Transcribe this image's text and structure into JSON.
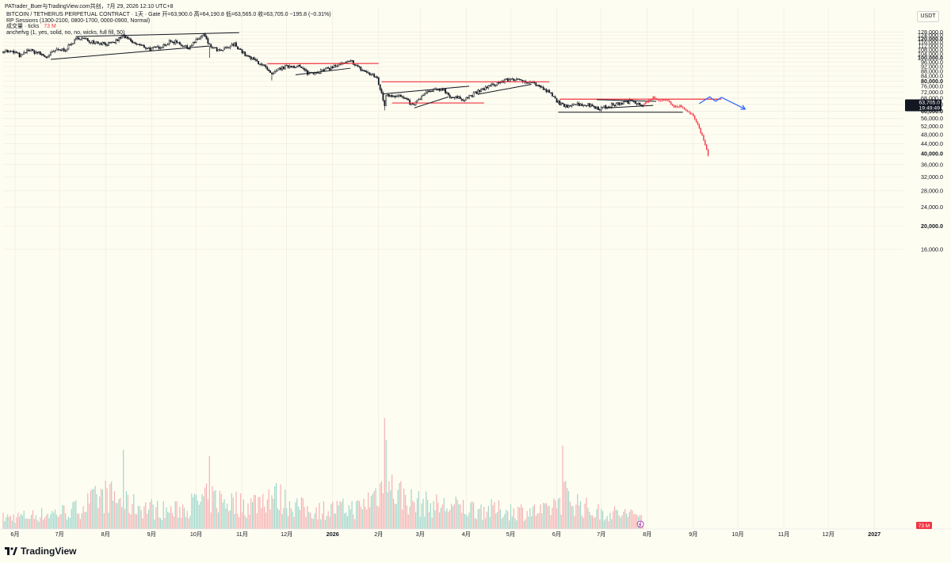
{
  "attribution": "PATrader_Buer与TradingView.com共创，7月 29, 2026 12:10 UTC+8",
  "legend": {
    "symbol_line": "BITCOIN / TETHERUS PERPETUAL CONTRACT · 1天 · Gate",
    "ohlc": "开=63,900.0  高=64,190.8  低=63,565.0  收=63,705.0  −195.8 (−0.31%)",
    "indicator_sessions": "RP Sessions (1300-2100, 0800-1700, 0000-0900, Normal)",
    "indicator_volume_label": "成交量 · ticks",
    "indicator_volume_value": "73 M",
    "indicator_anchor": "anchefvg (1, yes, solid, no, no, wicks, full fill, 50)"
  },
  "currency": "USDT",
  "logo_text": "TradingView",
  "colors": {
    "background": "#fefdf1",
    "candle": "#131722",
    "red": "#f23645",
    "volume_up": "#9fd6cc",
    "volume_down": "#f5b1b4",
    "projection": "#2962ff",
    "grid": "#eeeadb"
  },
  "chart_data": {
    "type": "candlestick",
    "timeframe": "1D",
    "y_axis": {
      "ticks": [
        "128,000.0",
        "124,000.0",
        "120,000.0",
        "116,000.0",
        "112,000.0",
        "108,000.0",
        "104,000.0",
        "100,000.0",
        "96,000.0",
        "92,000.0",
        "88,000.0",
        "84,000.0",
        "80,000.0",
        "76,000.0",
        "72,000.0",
        "68,000.0",
        "64,000.0",
        "60,000.0",
        "56,000.0",
        "52,000.0",
        "48,000.0",
        "44,000.0",
        "40,000.0",
        "36,000.0",
        "32,000.0",
        "28,000.0",
        "24,000.0",
        "20,000.0",
        "16,000.0"
      ],
      "tick_values": [
        128000,
        124000,
        120000,
        116000,
        112000,
        108000,
        104000,
        100000,
        96000,
        92000,
        88000,
        84000,
        80000,
        76000,
        72000,
        68000,
        64000,
        60000,
        56000,
        52000,
        48000,
        44000,
        40000,
        36000,
        32000,
        28000,
        24000,
        20000,
        16000
      ],
      "bold_ticks": [
        120000,
        100000,
        80000,
        60000,
        40000,
        20000
      ],
      "scale": "log",
      "range": [
        14500,
        131000
      ]
    },
    "x_axis": {
      "ticks": [
        "6月",
        "7月",
        "8月",
        "9月",
        "10月",
        "11月",
        "12月",
        "2026",
        "2月",
        "3月",
        "4月",
        "5月",
        "6月",
        "7月",
        "8月",
        "9月",
        "10月",
        "11月",
        "12月",
        "2027"
      ],
      "tick_dates": [
        "2025-06-01",
        "2025-07-01",
        "2025-08-01",
        "2025-09-01",
        "2025-10-01",
        "2025-11-01",
        "2025-12-01",
        "2026-01-01",
        "2026-02-01",
        "2026-03-01",
        "2026-04-01",
        "2026-05-01",
        "2026-06-01",
        "2026-07-01",
        "2026-08-01",
        "2026-09-01",
        "2026-10-01",
        "2026-11-01",
        "2026-12-01",
        "2027-01-01"
      ],
      "bold_ticks": [
        "2026",
        "2027"
      ]
    },
    "start_date": "2025-05-24",
    "last_real_date": "2026-07-29",
    "price_path": [
      [
        "2025-05-24",
        107000
      ],
      [
        "2025-06-01",
        105000
      ],
      [
        "2025-06-05",
        101500
      ],
      [
        "2025-06-10",
        108000
      ],
      [
        "2025-06-17",
        104500
      ],
      [
        "2025-06-22",
        100500
      ],
      [
        "2025-06-28",
        107000
      ],
      [
        "2025-07-05",
        108500
      ],
      [
        "2025-07-11",
        117500
      ],
      [
        "2025-07-14",
        121500
      ],
      [
        "2025-07-20",
        118000
      ],
      [
        "2025-08-01",
        114500
      ],
      [
        "2025-08-05",
        114000
      ],
      [
        "2025-08-13",
        123500
      ],
      [
        "2025-08-19",
        115500
      ],
      [
        "2025-09-01",
        108500
      ],
      [
        "2025-09-06",
        111000
      ],
      [
        "2025-09-13",
        116000
      ],
      [
        "2025-09-18",
        117000
      ],
      [
        "2025-09-25",
        109500
      ],
      [
        "2025-10-06",
        125000
      ],
      [
        "2025-10-10",
        112000
      ],
      [
        "2025-10-11",
        111500
      ],
      [
        "2025-10-17",
        106000
      ],
      [
        "2025-10-27",
        114000
      ],
      [
        "2025-11-04",
        101500
      ],
      [
        "2025-11-14",
        94500
      ],
      [
        "2025-11-21",
        84500
      ],
      [
        "2025-11-26",
        90000
      ],
      [
        "2025-12-03",
        92500
      ],
      [
        "2025-12-09",
        92500
      ],
      [
        "2025-12-15",
        86500
      ],
      [
        "2025-12-26",
        88500
      ],
      [
        "2026-01-05",
        93500
      ],
      [
        "2026-01-14",
        96500
      ],
      [
        "2026-01-20",
        89500
      ],
      [
        "2026-01-31",
        82500
      ],
      [
        "2026-02-05",
        63500
      ],
      [
        "2026-02-06",
        70500
      ],
      [
        "2026-02-16",
        69000
      ],
      [
        "2026-02-24",
        63500
      ],
      [
        "2026-03-05",
        71500
      ],
      [
        "2026-03-16",
        74500
      ],
      [
        "2026-03-22",
        68500
      ],
      [
        "2026-03-31",
        67500
      ],
      [
        "2026-04-14",
        75000
      ],
      [
        "2026-04-22",
        78500
      ],
      [
        "2026-05-02",
        82000
      ],
      [
        "2026-05-06",
        80500
      ],
      [
        "2026-05-15",
        79500
      ],
      [
        "2026-05-27",
        71500
      ],
      [
        "2026-06-02",
        65500
      ],
      [
        "2026-06-06",
        62500
      ],
      [
        "2026-06-12",
        64500
      ],
      [
        "2026-06-24",
        63500
      ],
      [
        "2026-06-30",
        61500
      ],
      [
        "2026-07-08",
        63500
      ],
      [
        "2026-07-18",
        65500
      ],
      [
        "2026-07-22",
        66500
      ],
      [
        "2026-07-29",
        63705
      ]
    ],
    "projection_red": [
      [
        "2026-07-30",
        64500
      ],
      [
        "2026-08-05",
        68500
      ],
      [
        "2026-08-10",
        66500
      ],
      [
        "2026-08-14",
        67000
      ],
      [
        "2026-08-19",
        62500
      ],
      [
        "2026-08-23",
        63000
      ],
      [
        "2026-08-27",
        60500
      ],
      [
        "2026-08-31",
        58500
      ],
      [
        "2026-09-03",
        54500
      ],
      [
        "2026-09-06",
        49000
      ],
      [
        "2026-09-08",
        45500
      ],
      [
        "2026-09-11",
        39500
      ]
    ],
    "projection_blue": [
      [
        "2026-09-05",
        64500
      ],
      [
        "2026-09-12",
        68800
      ],
      [
        "2026-09-16",
        66000
      ],
      [
        "2026-09-20",
        68500
      ],
      [
        "2026-10-06",
        61200
      ]
    ],
    "volume_axis_max": 150,
    "volume_envelope": [
      [
        "2025-05-24",
        18
      ],
      [
        "2025-06-15",
        22
      ],
      [
        "2025-07-10",
        30
      ],
      [
        "2025-08-02",
        55
      ],
      [
        "2025-08-15",
        40
      ],
      [
        "2025-09-15",
        28
      ],
      [
        "2025-10-10",
        50
      ],
      [
        "2025-11-05",
        38
      ],
      [
        "2025-11-20",
        56
      ],
      [
        "2025-12-15",
        30
      ],
      [
        "2026-01-20",
        34
      ],
      [
        "2026-02-05",
        72
      ],
      [
        "2026-02-25",
        42
      ],
      [
        "2026-03-20",
        36
      ],
      [
        "2026-04-25",
        30
      ],
      [
        "2026-05-25",
        28
      ],
      [
        "2026-06-06",
        55
      ],
      [
        "2026-06-25",
        28
      ],
      [
        "2026-07-29",
        22
      ]
    ],
    "volume_spikes": [
      [
        "2025-08-13",
        100
      ],
      [
        "2025-10-10",
        92
      ],
      [
        "2026-02-05",
        140
      ],
      [
        "2026-02-06",
        112
      ],
      [
        "2026-06-05",
        105
      ]
    ],
    "trendlines": [
      {
        "color": "black",
        "points": [
          [
            "2025-07-12",
            122600
          ],
          [
            "2025-10-30",
            127200
          ]
        ]
      },
      {
        "color": "black",
        "points": [
          [
            "2025-06-25",
            98500
          ],
          [
            "2025-10-10",
            112000
          ]
        ]
      },
      {
        "color": "red",
        "points": [
          [
            "2025-11-18",
            94500
          ],
          [
            "2026-02-01",
            94700
          ]
        ]
      },
      {
        "color": "black",
        "points": [
          [
            "2025-12-07",
            85000
          ],
          [
            "2026-01-13",
            90500
          ]
        ]
      },
      {
        "color": "red",
        "points": [
          [
            "2026-02-03",
            79500
          ],
          [
            "2026-05-27",
            79500
          ]
        ]
      },
      {
        "color": "black",
        "points": [
          [
            "2026-02-04",
            70800
          ],
          [
            "2026-04-03",
            76200
          ]
        ]
      },
      {
        "color": "red",
        "points": [
          [
            "2026-02-10",
            64900
          ],
          [
            "2026-04-13",
            64900
          ]
        ]
      },
      {
        "color": "black",
        "points": [
          [
            "2026-02-25",
            61900
          ],
          [
            "2026-03-20",
            68800
          ]
        ]
      },
      {
        "color": "black",
        "points": [
          [
            "2026-04-09",
            70600
          ],
          [
            "2026-05-15",
            77600
          ]
        ]
      },
      {
        "color": "red",
        "points": [
          [
            "2026-06-03",
            67300
          ],
          [
            "2026-09-20",
            67300
          ]
        ]
      },
      {
        "color": "black",
        "points": [
          [
            "2026-06-02",
            59400
          ],
          [
            "2026-08-25",
            59400
          ]
        ]
      },
      {
        "color": "black",
        "points": [
          [
            "2026-06-28",
            67000
          ],
          [
            "2026-08-07",
            65900
          ]
        ]
      },
      {
        "color": "black",
        "points": [
          [
            "2026-07-03",
            61800
          ],
          [
            "2026-08-05",
            63400
          ]
        ]
      }
    ],
    "last_price_label": "63,705.0",
    "countdown_label": "19:49:49",
    "volume_label": "73 M"
  }
}
